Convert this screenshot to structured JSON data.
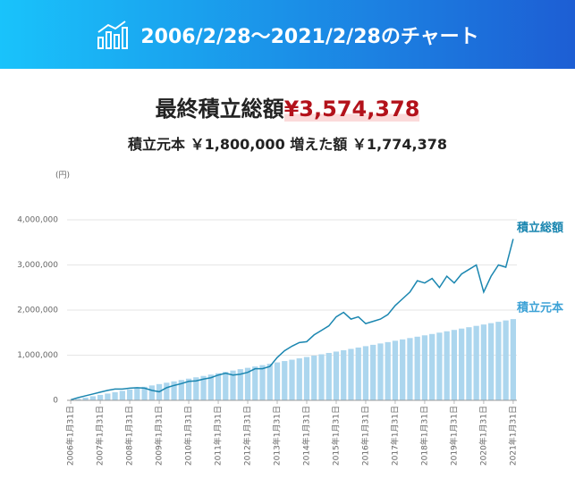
{
  "header": {
    "title": "2006/2/28〜2021/2/28のチャート"
  },
  "summary": {
    "final_label": "最終積立総額",
    "final_value": "¥3,574,378",
    "principal_label": "積立元本",
    "principal_value": "￥1,800,000",
    "gain_label": "増えた額",
    "gain_value": "￥1,774,378"
  },
  "chart_data": {
    "type": "bar",
    "y_label": "(円)",
    "categories": [
      "2006年1月31日",
      null,
      null,
      null,
      "2007年1月31日",
      null,
      null,
      null,
      "2008年1月31日",
      null,
      null,
      null,
      "2009年1月31日",
      null,
      null,
      null,
      "2010年1月31日",
      null,
      null,
      null,
      "2011年1月31日",
      null,
      null,
      null,
      "2012年1月31日",
      null,
      null,
      null,
      "2013年1月31日",
      null,
      null,
      null,
      "2014年1月31日",
      null,
      null,
      null,
      "2015年1月31日",
      null,
      null,
      null,
      "2016年1月31日",
      null,
      null,
      null,
      "2017年1月31日",
      null,
      null,
      null,
      "2018年1月31日",
      null,
      null,
      null,
      "2019年1月31日",
      null,
      null,
      null,
      "2020年1月31日",
      null,
      null,
      null,
      "2021年1月31日"
    ],
    "series": [
      {
        "name": "積立元本",
        "type": "bar",
        "color": "#acd6ee",
        "values": [
          10000,
          30000,
          60000,
          90000,
          120000,
          150000,
          180000,
          210000,
          240000,
          270000,
          300000,
          330000,
          360000,
          390000,
          420000,
          450000,
          480000,
          510000,
          540000,
          570000,
          600000,
          630000,
          660000,
          690000,
          720000,
          750000,
          780000,
          810000,
          840000,
          870000,
          900000,
          930000,
          960000,
          990000,
          1020000,
          1050000,
          1080000,
          1110000,
          1140000,
          1170000,
          1200000,
          1230000,
          1260000,
          1290000,
          1320000,
          1350000,
          1380000,
          1410000,
          1440000,
          1470000,
          1500000,
          1530000,
          1560000,
          1590000,
          1620000,
          1650000,
          1680000,
          1710000,
          1740000,
          1770000,
          1800000
        ]
      },
      {
        "name": "積立総額",
        "type": "line",
        "color": "#1a86b0",
        "values": [
          10000,
          60000,
          100000,
          140000,
          180000,
          220000,
          250000,
          250000,
          270000,
          280000,
          270000,
          220000,
          190000,
          280000,
          330000,
          370000,
          420000,
          430000,
          470000,
          500000,
          560000,
          600000,
          560000,
          580000,
          620000,
          700000,
          700000,
          750000,
          950000,
          1100000,
          1200000,
          1280000,
          1300000,
          1450000,
          1550000,
          1650000,
          1850000,
          1950000,
          1800000,
          1850000,
          1700000,
          1750000,
          1800000,
          1900000,
          2100000,
          2250000,
          2400000,
          2650000,
          2600000,
          2700000,
          2500000,
          2750000,
          2600000,
          2800000,
          2900000,
          3000000,
          2400000,
          2750000,
          3000000,
          2950000,
          3574378
        ]
      }
    ],
    "ylim": [
      0,
      4000000
    ],
    "yticks": [
      0,
      {
        "value": 1000000,
        "label": "1,000,000"
      },
      {
        "value": 2000000,
        "label": "2,000,000"
      },
      {
        "value": 3000000,
        "label": "3,000,000"
      },
      {
        "value": 4000000,
        "label": "4,000,000"
      }
    ],
    "grid": true
  }
}
